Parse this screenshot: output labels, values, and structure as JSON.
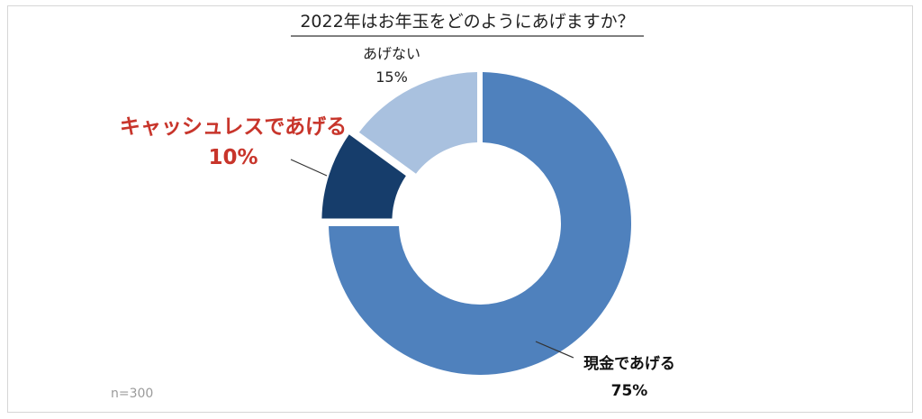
{
  "chart_data": {
    "type": "pie",
    "title": "2022年はお年玉をどのようにあげますか？",
    "slices": [
      {
        "label": "現金であげる",
        "value": 75,
        "display": "75%",
        "color": "#4f81bd"
      },
      {
        "label": "キャッシュレスであげる",
        "value": 10,
        "display": "10%",
        "color": "#163d6b"
      },
      {
        "label": "あげない",
        "value": 15,
        "display": "15%",
        "color": "#a9c1df"
      }
    ],
    "sample_note": "n=300",
    "highlight_color": "#c8352b",
    "label_color": "#222222",
    "leader_line_color": "#333333"
  }
}
